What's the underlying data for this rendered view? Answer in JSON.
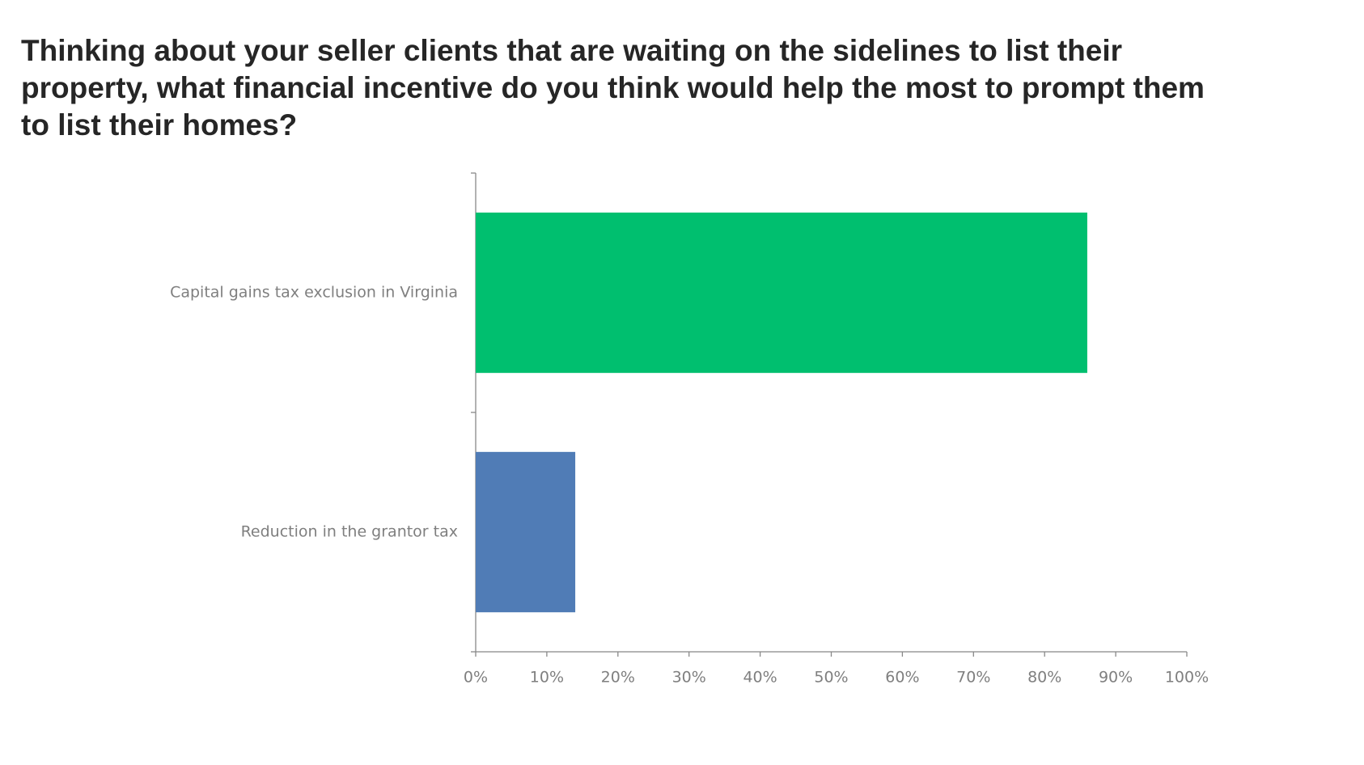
{
  "chart_data": {
    "type": "hbar",
    "title": "Thinking about your seller clients that are waiting on the sidelines to list their property, what financial incentive do you think would help the most to prompt them to list their homes?",
    "categories": [
      "Capital gains tax exclusion in Virginia",
      "Reduction in the grantor tax"
    ],
    "values": [
      86,
      14
    ],
    "colors": [
      "#00bf6f",
      "#507cb6"
    ],
    "xlim": [
      0,
      100
    ],
    "xticks": [
      {
        "value": 0,
        "label": "0%"
      },
      {
        "value": 10,
        "label": "10%"
      },
      {
        "value": 20,
        "label": "20%"
      },
      {
        "value": 30,
        "label": "30%"
      },
      {
        "value": 40,
        "label": "40%"
      },
      {
        "value": 50,
        "label": "50%"
      },
      {
        "value": 60,
        "label": "60%"
      },
      {
        "value": 70,
        "label": "70%"
      },
      {
        "value": 80,
        "label": "80%"
      },
      {
        "value": 90,
        "label": "90%"
      },
      {
        "value": 100,
        "label": "100%"
      }
    ]
  }
}
